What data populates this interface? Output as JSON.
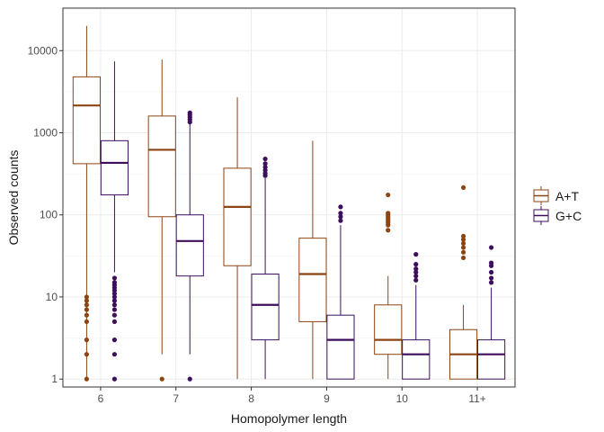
{
  "chart_data": {
    "type": "boxplot",
    "xlabel": "Homopolymer length",
    "ylabel": "Observed counts",
    "yscale": "log10",
    "ylim": [
      0.8,
      33000
    ],
    "yticks": [
      1,
      10,
      100,
      1000,
      10000
    ],
    "ytick_labels": [
      "1",
      "10",
      "100",
      "1000",
      "10000"
    ],
    "categories": [
      "6",
      "7",
      "8",
      "9",
      "10",
      "11+"
    ],
    "grid": true,
    "legend_position": "right",
    "series": [
      {
        "name": "A+T",
        "color": "#8B4513",
        "boxes": [
          {
            "min": 1,
            "q1": 420,
            "median": 2150,
            "q3": 4800,
            "max": 20000,
            "outliers": [
              1,
              2,
              3,
              5,
              6,
              7,
              8,
              9,
              10
            ]
          },
          {
            "min": 2,
            "q1": 95,
            "median": 620,
            "q3": 1600,
            "max": 7800,
            "outliers": [
              1
            ]
          },
          {
            "min": 1,
            "q1": 24,
            "median": 125,
            "q3": 370,
            "max": 2700,
            "outliers": []
          },
          {
            "min": 1,
            "q1": 5,
            "median": 19,
            "q3": 52,
            "max": 800,
            "outliers": []
          },
          {
            "min": 1,
            "q1": 2,
            "median": 3,
            "q3": 8,
            "max": 18,
            "outliers": [
              65,
              75,
              80,
              85,
              90,
              95,
              100,
              105,
              175
            ]
          },
          {
            "min": 1,
            "q1": 1,
            "median": 2,
            "q3": 4,
            "max": 8,
            "outliers": [
              30,
              35,
              40,
              45,
              50,
              55,
              215
            ]
          }
        ]
      },
      {
        "name": "G+C",
        "color": "#3C0E5C",
        "boxes": [
          {
            "min": 20,
            "q1": 175,
            "median": 430,
            "q3": 800,
            "max": 7400,
            "outliers": [
              1,
              2,
              3,
              5,
              6,
              7,
              8,
              9,
              10,
              11,
              12,
              13,
              14,
              15,
              17
            ]
          },
          {
            "min": 2,
            "q1": 18,
            "median": 48,
            "q3": 100,
            "max": 1300,
            "outliers": [
              1,
              1350,
              1450,
              1550,
              1650,
              1750
            ]
          },
          {
            "min": 1,
            "q1": 3,
            "median": 8,
            "q3": 19,
            "max": 280,
            "outliers": [
              300,
              320,
              350,
              380,
              420,
              480
            ]
          },
          {
            "min": 1,
            "q1": 1,
            "median": 3,
            "q3": 6,
            "max": 75,
            "outliers": [
              85,
              95,
              105,
              125
            ]
          },
          {
            "min": 1,
            "q1": 1,
            "median": 2,
            "q3": 3,
            "max": 14,
            "outliers": [
              16,
              18,
              20,
              22,
              25,
              33
            ]
          },
          {
            "min": 1,
            "q1": 1,
            "median": 2,
            "q3": 3,
            "max": 13,
            "outliers": [
              15,
              17,
              20,
              24,
              26,
              40
            ]
          }
        ]
      }
    ]
  }
}
